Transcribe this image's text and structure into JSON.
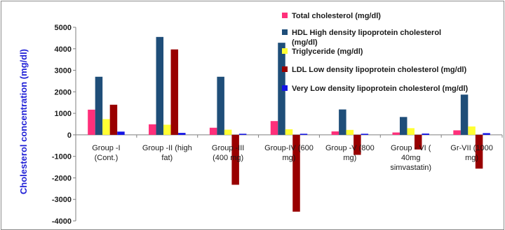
{
  "chart_data": {
    "type": "bar",
    "title": "",
    "xlabel": "",
    "ylabel": "Cholesterol concentration (mg/dl)",
    "ylim": [
      -4000,
      5000
    ],
    "yticks": [
      -4000,
      -3000,
      -2000,
      -1000,
      0,
      1000,
      2000,
      3000,
      4000,
      5000
    ],
    "grid": false,
    "legend_position": "top-right",
    "categories": [
      [
        "Group -I",
        "(Cont.)"
      ],
      [
        "Group -II (high",
        "fat)"
      ],
      [
        "Group -III",
        "(400 mg)"
      ],
      [
        "Group-IV (600",
        "mg)"
      ],
      [
        "Group -V (800",
        "mg)"
      ],
      [
        "Group - VI (",
        "40mg",
        "simvastatin)"
      ],
      [
        "Gr-VII (1000",
        "mg)"
      ]
    ],
    "series": [
      {
        "name": "Total cholesterol (mg/dl)",
        "color": "#ff2f7a",
        "values": [
          1170,
          490,
          330,
          640,
          160,
          110,
          210
        ]
      },
      {
        "name": "HDL High density   lipoprotein cholesterol (mg/dl)",
        "color": "#1f4e79",
        "values": [
          2700,
          4550,
          2700,
          4280,
          1180,
          830,
          1870
        ]
      },
      {
        "name": "Triglyceride (mg/dl)",
        "color": "#ffff33",
        "values": [
          730,
          470,
          240,
          260,
          230,
          310,
          390
        ]
      },
      {
        "name": "LDL Low density lipoprotein cholesterol (mg/dl)",
        "color": "#990000",
        "values": [
          1400,
          3970,
          -2320,
          -3570,
          -930,
          -680,
          -1570
        ]
      },
      {
        "name": "Very Low density lipoprotein cholesterol (mg/dl)",
        "color": "#1414e6",
        "values": [
          150,
          90,
          50,
          50,
          50,
          60,
          80
        ]
      }
    ]
  }
}
